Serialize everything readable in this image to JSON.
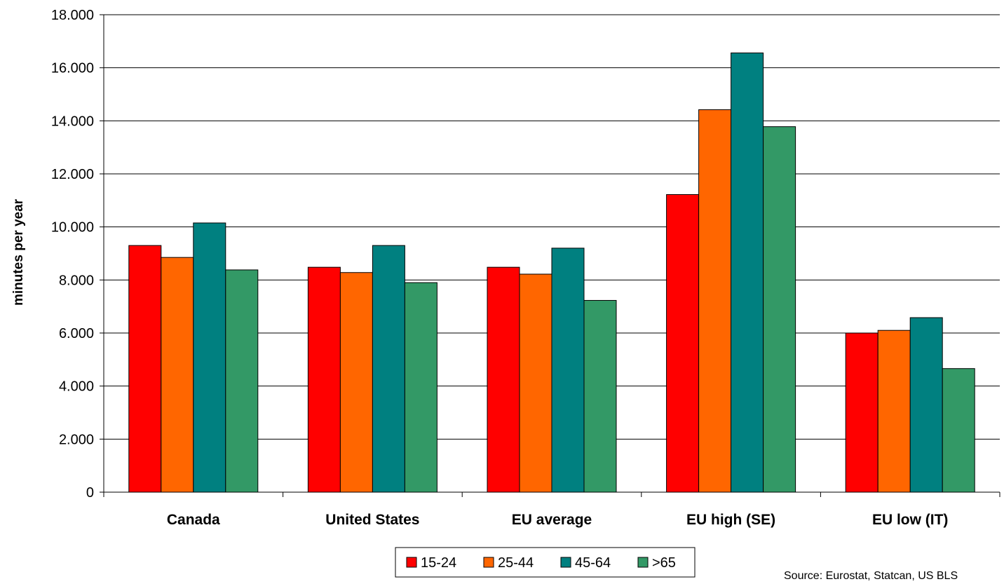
{
  "chart_data": {
    "type": "bar",
    "title": "",
    "xlabel": "",
    "ylabel": "minutes per year",
    "ylim": [
      0,
      18000
    ],
    "yticks": [
      0,
      2000,
      4000,
      6000,
      8000,
      10000,
      12000,
      14000,
      16000,
      18000
    ],
    "ytick_labels": [
      "0",
      "2.000",
      "4.000",
      "6.000",
      "8.000",
      "10.000",
      "12.000",
      "14.000",
      "16.000",
      "18.000"
    ],
    "categories": [
      "Canada",
      "United States",
      "EU average",
      "EU high (SE)",
      "EU low (IT)"
    ],
    "series": [
      {
        "name": "15-24",
        "color": "#ff0000",
        "values": [
          9300,
          8480,
          8480,
          11220,
          6000
        ]
      },
      {
        "name": "25-44",
        "color": "#ff6600",
        "values": [
          8850,
          8280,
          8220,
          14420,
          6100
        ]
      },
      {
        "name": "45-64",
        "color": "#008080",
        "values": [
          10150,
          9300,
          9200,
          16560,
          6580
        ]
      },
      {
        "name": ">65",
        "color": "#339966",
        "values": [
          8380,
          7900,
          7230,
          13780,
          4660
        ]
      }
    ],
    "grid": true,
    "legend_position": "bottom-center",
    "source": "Source: Eurostat, Statcan, US BLS"
  }
}
